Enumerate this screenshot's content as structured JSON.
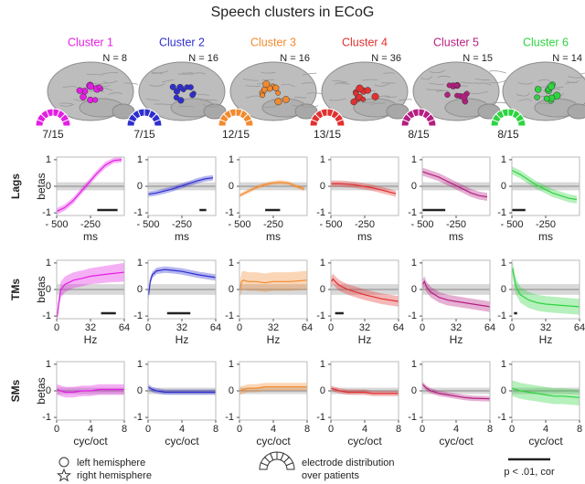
{
  "title": "Speech clusters in ECoG",
  "clusters": [
    {
      "name": "Cluster 1",
      "color": "#e31ee3",
      "n": "N = 8",
      "fraction": "7/15"
    },
    {
      "name": "Cluster 2",
      "color": "#2e2ed0",
      "n": "N = 16",
      "fraction": "7/15"
    },
    {
      "name": "Cluster 3",
      "color": "#f28a2e",
      "n": "N = 16",
      "fraction": "12/15"
    },
    {
      "name": "Cluster 4",
      "color": "#e23030",
      "n": "N = 36",
      "fraction": "13/15"
    },
    {
      "name": "Cluster 5",
      "color": "#b51e80",
      "n": "N = 15",
      "fraction": "8/15"
    },
    {
      "name": "Cluster 6",
      "color": "#2ed440",
      "n": "N = 14",
      "fraction": "8/15"
    }
  ],
  "row_labels": [
    "Lags",
    "TMs",
    "SMs"
  ],
  "legend": {
    "left": "left hemisphere",
    "right": "right hemisphere",
    "distribution": [
      "electrode distribution",
      "over patients"
    ],
    "scale": "p < .01, cor"
  },
  "chart_data": [
    {
      "type": "line",
      "color": "#e31ee3",
      "ylabel": "betas",
      "xlabel": "ms",
      "x": [
        -500,
        -440,
        -380,
        -320,
        -260,
        -200,
        -140,
        -80,
        -20
      ],
      "values": [
        -0.95,
        -0.8,
        -0.55,
        -0.2,
        0.15,
        0.5,
        0.8,
        0.97,
        1.0
      ],
      "errors": [
        0.12,
        0.12,
        0.12,
        0.12,
        0.12,
        0.12,
        0.12,
        0.1,
        0.1
      ],
      "null_band": [
        -0.15,
        0.15
      ],
      "significance": [
        -200,
        -50
      ],
      "xlim": [
        -500,
        0
      ],
      "xticks": [
        {
          "value": -500,
          "label": "- 500"
        },
        -250
      ],
      "ylim": [
        -1.1,
        1.1
      ],
      "yticks": [
        -1,
        0,
        1
      ]
    },
    {
      "type": "line",
      "color": "#2e2ed0",
      "xlabel": "ms",
      "x": [
        -500,
        -440,
        -380,
        -320,
        -260,
        -200,
        -140,
        -80,
        -20
      ],
      "values": [
        -0.3,
        -0.25,
        -0.18,
        -0.1,
        0,
        0.1,
        0.2,
        0.28,
        0.32
      ],
      "errors": [
        0.1,
        0.1,
        0.1,
        0.1,
        0.1,
        0.1,
        0.1,
        0.1,
        0.1
      ],
      "null_band": [
        -0.15,
        0.15
      ],
      "significance": [
        -120,
        -70
      ],
      "xlim": [
        -500,
        0
      ],
      "xticks": [
        {
          "value": -500,
          "label": "- 500"
        },
        -250
      ],
      "ylim": [
        -1.1,
        1.1
      ],
      "yticks": [
        -1,
        0,
        1
      ]
    },
    {
      "type": "line",
      "color": "#f28a2e",
      "xlabel": "ms",
      "x": [
        -500,
        -440,
        -380,
        -320,
        -260,
        -200,
        -140,
        -80,
        -20
      ],
      "values": [
        -0.35,
        -0.2,
        -0.05,
        0.05,
        0.12,
        0.15,
        0.12,
        0.0,
        -0.1
      ],
      "errors": [
        0.08,
        0.08,
        0.08,
        0.08,
        0.08,
        0.08,
        0.08,
        0.08,
        0.08
      ],
      "null_band": [
        -0.15,
        0.15
      ],
      "significance": [
        -310,
        -200
      ],
      "xlim": [
        -500,
        0
      ],
      "xticks": [
        {
          "value": -500,
          "label": "- 500"
        },
        -250
      ],
      "ylim": [
        -1.1,
        1.1
      ],
      "yticks": [
        -1,
        0,
        1
      ]
    },
    {
      "type": "line",
      "color": "#e23030",
      "xlabel": "ms",
      "x": [
        -500,
        -440,
        -380,
        -320,
        -260,
        -200,
        -140,
        -80,
        -20
      ],
      "values": [
        0.1,
        0.1,
        0.08,
        0.05,
        0,
        -0.05,
        -0.12,
        -0.2,
        -0.28
      ],
      "errors": [
        0.12,
        0.12,
        0.12,
        0.12,
        0.12,
        0.12,
        0.12,
        0.12,
        0.12
      ],
      "null_band": [
        -0.15,
        0.15
      ],
      "xlim": [
        -500,
        0
      ],
      "xticks": [
        {
          "value": -500,
          "label": "- 500"
        },
        -250
      ],
      "ylim": [
        -1.1,
        1.1
      ],
      "yticks": [
        -1,
        0,
        1
      ]
    },
    {
      "type": "line",
      "color": "#b51e80",
      "xlabel": "ms",
      "x": [
        -500,
        -440,
        -380,
        -320,
        -260,
        -200,
        -140,
        -80,
        -20
      ],
      "values": [
        0.55,
        0.45,
        0.35,
        0.2,
        0.05,
        -0.1,
        -0.25,
        -0.35,
        -0.4
      ],
      "errors": [
        0.15,
        0.15,
        0.15,
        0.15,
        0.15,
        0.15,
        0.15,
        0.15,
        0.15
      ],
      "null_band": [
        -0.15,
        0.15
      ],
      "significance": [
        -500,
        -330
      ],
      "xlim": [
        -500,
        0
      ],
      "xticks": [
        {
          "value": -500,
          "label": "- 500"
        },
        -250
      ],
      "ylim": [
        -1.1,
        1.1
      ],
      "yticks": [
        -1,
        0,
        1
      ]
    },
    {
      "type": "line",
      "color": "#2ed440",
      "xlabel": "ms",
      "x": [
        -500,
        -440,
        -380,
        -320,
        -260,
        -200,
        -140,
        -80,
        -20
      ],
      "values": [
        0.6,
        0.45,
        0.25,
        0.05,
        -0.1,
        -0.25,
        -0.35,
        -0.45,
        -0.5
      ],
      "errors": [
        0.15,
        0.15,
        0.15,
        0.15,
        0.15,
        0.15,
        0.15,
        0.15,
        0.15
      ],
      "null_band": [
        -0.15,
        0.15
      ],
      "significance": [
        -500,
        -400
      ],
      "xlim": [
        -500,
        0
      ],
      "xticks": [
        {
          "value": -500,
          "label": "- 500"
        },
        -250
      ],
      "ylim": [
        -1.1,
        1.1
      ],
      "yticks": [
        -1,
        0,
        1
      ]
    },
    {
      "type": "line",
      "color": "#e31ee3",
      "ylabel": "betas",
      "xlabel": "Hz",
      "x": [
        0.5,
        2,
        4,
        8,
        16,
        24,
        32,
        48,
        64
      ],
      "values": [
        -1.05,
        -0.5,
        0.0,
        0.2,
        0.35,
        0.42,
        0.5,
        0.58,
        0.65
      ],
      "errors": [
        0.1,
        0.25,
        0.3,
        0.3,
        0.3,
        0.3,
        0.3,
        0.32,
        0.35
      ],
      "null_band": [
        -0.2,
        0.2
      ],
      "significance": [
        42,
        56
      ],
      "xlim": [
        0,
        64
      ],
      "xticks": [
        0,
        32,
        64
      ],
      "ylim": [
        -1.1,
        1.1
      ],
      "yticks": [
        -1,
        0,
        1
      ]
    },
    {
      "type": "line",
      "color": "#2e2ed0",
      "xlabel": "Hz",
      "x": [
        0.5,
        2,
        4,
        8,
        16,
        24,
        32,
        48,
        64
      ],
      "values": [
        -0.2,
        0.3,
        0.55,
        0.7,
        0.75,
        0.72,
        0.68,
        0.55,
        0.45
      ],
      "errors": [
        0.2,
        0.15,
        0.12,
        0.12,
        0.12,
        0.12,
        0.12,
        0.12,
        0.12
      ],
      "null_band": [
        -0.2,
        0.2
      ],
      "significance": [
        18,
        40
      ],
      "xlim": [
        0,
        64
      ],
      "xticks": [
        0,
        32,
        64
      ],
      "ylim": [
        -1.1,
        1.1
      ],
      "yticks": [
        -1,
        0,
        1
      ]
    },
    {
      "type": "line",
      "color": "#f28a2e",
      "xlabel": "Hz",
      "x": [
        0.5,
        2,
        4,
        8,
        16,
        24,
        32,
        48,
        64
      ],
      "values": [
        0.0,
        0.3,
        0.35,
        0.3,
        0.3,
        0.25,
        0.3,
        0.3,
        0.35
      ],
      "errors": [
        0.3,
        0.35,
        0.35,
        0.35,
        0.35,
        0.35,
        0.35,
        0.35,
        0.35
      ],
      "null_band": [
        -0.2,
        0.2
      ],
      "xlim": [
        0,
        64
      ],
      "xticks": [
        0,
        32,
        64
      ],
      "ylim": [
        -1.1,
        1.1
      ],
      "yticks": [
        -1,
        0,
        1
      ]
    },
    {
      "type": "line",
      "color": "#e23030",
      "xlabel": "Hz",
      "x": [
        0.5,
        2,
        4,
        8,
        16,
        24,
        32,
        48,
        64
      ],
      "values": [
        0.3,
        0.4,
        0.3,
        0.15,
        0.0,
        -0.1,
        -0.2,
        -0.35,
        -0.45
      ],
      "errors": [
        0.2,
        0.2,
        0.2,
        0.2,
        0.2,
        0.2,
        0.2,
        0.2,
        0.2
      ],
      "null_band": [
        -0.2,
        0.2
      ],
      "significance": [
        4,
        12
      ],
      "xlim": [
        0,
        64
      ],
      "xticks": [
        0,
        32,
        64
      ],
      "ylim": [
        -1.1,
        1.1
      ],
      "yticks": [
        -1,
        0,
        1
      ]
    },
    {
      "type": "line",
      "color": "#b51e80",
      "xlabel": "Hz",
      "x": [
        0.5,
        2,
        4,
        8,
        16,
        24,
        32,
        48,
        64
      ],
      "values": [
        0.2,
        0.3,
        0.1,
        -0.1,
        -0.3,
        -0.4,
        -0.45,
        -0.55,
        -0.65
      ],
      "errors": [
        0.2,
        0.2,
        0.2,
        0.2,
        0.2,
        0.2,
        0.2,
        0.2,
        0.2
      ],
      "null_band": [
        -0.2,
        0.2
      ],
      "xlim": [
        0,
        64
      ],
      "xticks": [
        0,
        32,
        64
      ],
      "ylim": [
        -1.1,
        1.1
      ],
      "yticks": [
        -1,
        0,
        1
      ]
    },
    {
      "type": "line",
      "color": "#2ed440",
      "xlabel": "Hz",
      "x": [
        0.5,
        2,
        4,
        8,
        16,
        24,
        32,
        48,
        64
      ],
      "values": [
        0.8,
        0.5,
        0.1,
        -0.2,
        -0.4,
        -0.5,
        -0.55,
        -0.6,
        -0.65
      ],
      "errors": [
        0.3,
        0.3,
        0.3,
        0.3,
        0.3,
        0.3,
        0.3,
        0.3,
        0.3
      ],
      "null_band": [
        -0.2,
        0.2
      ],
      "significance": [
        2,
        5
      ],
      "xlim": [
        0,
        64
      ],
      "xticks": [
        0,
        32,
        64
      ],
      "ylim": [
        -1.1,
        1.1
      ],
      "yticks": [
        -1,
        0,
        1
      ]
    },
    {
      "type": "line",
      "color": "#e31ee3",
      "ylabel": "betas",
      "xlabel": "cyc/oct",
      "x": [
        0,
        0.5,
        1,
        2,
        3,
        4,
        5,
        6,
        8
      ],
      "values": [
        0.05,
        0,
        -0.05,
        -0.05,
        0,
        0,
        0.05,
        0.05,
        0.05
      ],
      "errors": [
        0.2,
        0.2,
        0.2,
        0.2,
        0.2,
        0.2,
        0.2,
        0.2,
        0.2
      ],
      "null_band": [
        -0.12,
        0.12
      ],
      "xlim": [
        0,
        8
      ],
      "xticks": [
        0,
        4,
        8
      ],
      "ylim": [
        -1.1,
        1.1
      ],
      "yticks": [
        -1,
        0,
        1
      ]
    },
    {
      "type": "line",
      "color": "#2e2ed0",
      "xlabel": "cyc/oct",
      "x": [
        0,
        0.5,
        1,
        2,
        3,
        4,
        5,
        6,
        8
      ],
      "values": [
        0.15,
        0.05,
        0,
        -0.05,
        -0.05,
        -0.05,
        -0.05,
        -0.05,
        -0.05
      ],
      "errors": [
        0.1,
        0.1,
        0.1,
        0.1,
        0.1,
        0.1,
        0.1,
        0.1,
        0.1
      ],
      "null_band": [
        -0.12,
        0.12
      ],
      "xlim": [
        0,
        8
      ],
      "xticks": [
        0,
        4,
        8
      ],
      "ylim": [
        -1.1,
        1.1
      ],
      "yticks": [
        -1,
        0,
        1
      ]
    },
    {
      "type": "line",
      "color": "#f28a2e",
      "xlabel": "cyc/oct",
      "x": [
        0,
        0.5,
        1,
        2,
        3,
        4,
        5,
        6,
        8
      ],
      "values": [
        0.0,
        0.05,
        0.1,
        0.1,
        0.15,
        0.15,
        0.15,
        0.15,
        0.15
      ],
      "errors": [
        0.15,
        0.15,
        0.15,
        0.15,
        0.15,
        0.15,
        0.15,
        0.15,
        0.15
      ],
      "null_band": [
        -0.12,
        0.12
      ],
      "xlim": [
        0,
        8
      ],
      "xticks": [
        0,
        4,
        8
      ],
      "ylim": [
        -1.1,
        1.1
      ],
      "yticks": [
        -1,
        0,
        1
      ]
    },
    {
      "type": "line",
      "color": "#e23030",
      "xlabel": "cyc/oct",
      "x": [
        0,
        0.5,
        1,
        2,
        3,
        4,
        5,
        6,
        8
      ],
      "values": [
        0.1,
        0.05,
        0,
        -0.05,
        -0.05,
        -0.05,
        -0.1,
        -0.1,
        -0.1
      ],
      "errors": [
        0.1,
        0.1,
        0.1,
        0.1,
        0.1,
        0.1,
        0.1,
        0.1,
        0.1
      ],
      "null_band": [
        -0.12,
        0.12
      ],
      "xlim": [
        0,
        8
      ],
      "xticks": [
        0,
        4,
        8
      ],
      "ylim": [
        -1.1,
        1.1
      ],
      "yticks": [
        -1,
        0,
        1
      ]
    },
    {
      "type": "line",
      "color": "#b51e80",
      "xlabel": "cyc/oct",
      "x": [
        0,
        0.5,
        1,
        2,
        3,
        4,
        5,
        6,
        8
      ],
      "values": [
        0.25,
        0.1,
        0,
        -0.1,
        -0.15,
        -0.2,
        -0.25,
        -0.28,
        -0.3
      ],
      "errors": [
        0.1,
        0.1,
        0.1,
        0.1,
        0.1,
        0.1,
        0.1,
        0.1,
        0.1
      ],
      "null_band": [
        -0.12,
        0.12
      ],
      "xlim": [
        0,
        8
      ],
      "xticks": [
        0,
        4,
        8
      ],
      "ylim": [
        -1.1,
        1.1
      ],
      "yticks": [
        -1,
        0,
        1
      ]
    },
    {
      "type": "line",
      "color": "#2ed440",
      "xlabel": "cyc/oct",
      "x": [
        0,
        0.5,
        1,
        2,
        3,
        4,
        5,
        6,
        8
      ],
      "values": [
        0.1,
        0.05,
        0,
        -0.05,
        -0.1,
        -0.15,
        -0.2,
        -0.2,
        -0.25
      ],
      "errors": [
        0.3,
        0.3,
        0.3,
        0.3,
        0.3,
        0.3,
        0.3,
        0.3,
        0.3
      ],
      "null_band": [
        -0.12,
        0.12
      ],
      "xlim": [
        0,
        8
      ],
      "xticks": [
        0,
        4,
        8
      ],
      "ylim": [
        -1.1,
        1.1
      ],
      "yticks": [
        -1,
        0,
        1
      ]
    }
  ]
}
